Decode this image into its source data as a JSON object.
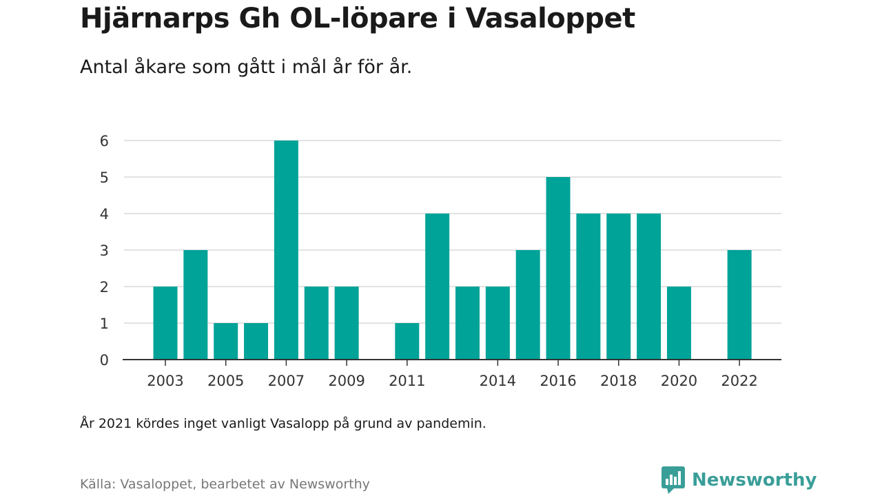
{
  "header": {
    "title": "Hjärnarps Gh OL-löpare i Vasaloppet",
    "subtitle": "Antal åkare som gått i mål år för år."
  },
  "footer": {
    "note": "År 2021 kördes inget vanligt Vasalopp på grund av pandemin.",
    "source": "Källa: Vasaloppet, bearbetet av Newsworthy",
    "brand": "Newsworthy"
  },
  "colors": {
    "bar": "#00a398",
    "brand": "#3a9e98",
    "grid": "#d9d9d9",
    "axis": "#333333"
  },
  "chart_data": {
    "type": "bar",
    "title": "Hjärnarps Gh OL-löpare i Vasaloppet",
    "subtitle": "Antal åkare som gått i mål år för år.",
    "categories": [
      2003,
      2004,
      2005,
      2006,
      2007,
      2008,
      2009,
      2010,
      2011,
      2012,
      2013,
      2014,
      2015,
      2016,
      2017,
      2018,
      2019,
      2020,
      2021,
      2022
    ],
    "values": [
      2,
      3,
      1,
      1,
      6,
      2,
      2,
      0,
      1,
      4,
      2,
      2,
      3,
      5,
      4,
      4,
      4,
      2,
      0,
      3
    ],
    "xticks": [
      2003,
      2005,
      2007,
      2009,
      2011,
      2014,
      2016,
      2018,
      2020,
      2022
    ],
    "yticks": [
      0,
      1,
      2,
      3,
      4,
      5,
      6
    ],
    "ylim": [
      0,
      6
    ],
    "xlabel": "",
    "ylabel": "",
    "grid": true,
    "legend": "none"
  }
}
